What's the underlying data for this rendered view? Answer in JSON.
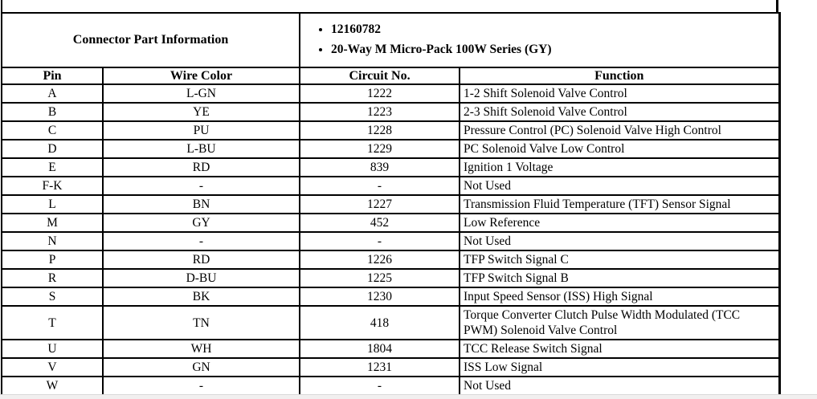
{
  "header": {
    "title": "Connector Part Information",
    "bullets": [
      "12160782",
      "20-Way M Micro-Pack 100W Series (GY)"
    ]
  },
  "table": {
    "columns": [
      "Pin",
      "Wire Color",
      "Circuit No.",
      "Function"
    ],
    "rows": [
      {
        "pin": "A",
        "wire_color": "L-GN",
        "circuit": "1222",
        "function": "1-2 Shift Solenoid Valve Control"
      },
      {
        "pin": "B",
        "wire_color": "YE",
        "circuit": "1223",
        "function": "2-3 Shift Solenoid Valve Control"
      },
      {
        "pin": "C",
        "wire_color": "PU",
        "circuit": "1228",
        "function": "Pressure Control (PC) Solenoid Valve High Control"
      },
      {
        "pin": "D",
        "wire_color": "L-BU",
        "circuit": "1229",
        "function": "PC Solenoid Valve Low Control"
      },
      {
        "pin": "E",
        "wire_color": "RD",
        "circuit": "839",
        "function": "Ignition 1 Voltage"
      },
      {
        "pin": "F-K",
        "wire_color": "-",
        "circuit": "-",
        "function": "Not Used"
      },
      {
        "pin": "L",
        "wire_color": "BN",
        "circuit": "1227",
        "function": "Transmission Fluid Temperature (TFT) Sensor Signal"
      },
      {
        "pin": "M",
        "wire_color": "GY",
        "circuit": "452",
        "function": "Low Reference"
      },
      {
        "pin": "N",
        "wire_color": "-",
        "circuit": "-",
        "function": "Not Used"
      },
      {
        "pin": "P",
        "wire_color": "RD",
        "circuit": "1226",
        "function": "TFP Switch Signal C"
      },
      {
        "pin": "R",
        "wire_color": "D-BU",
        "circuit": "1225",
        "function": "TFP Switch Signal B"
      },
      {
        "pin": "S",
        "wire_color": "BK",
        "circuit": "1230",
        "function": "Input Speed Sensor (ISS) High Signal"
      },
      {
        "pin": "T",
        "wire_color": "TN",
        "circuit": "418",
        "function": "Torque Converter Clutch Pulse Width Modulated (TCC PWM) Solenoid Valve Control"
      },
      {
        "pin": "U",
        "wire_color": "WH",
        "circuit": "1804",
        "function": "TCC Release Switch Signal"
      },
      {
        "pin": "V",
        "wire_color": "GN",
        "circuit": "1231",
        "function": "ISS Low Signal"
      },
      {
        "pin": "W",
        "wire_color": "-",
        "circuit": "-",
        "function": "Not Used"
      }
    ]
  },
  "colors": {
    "border": "#000000",
    "bottom_bar_fill": "#f1efef",
    "bottom_bar_edge": "#d9d9d9"
  }
}
